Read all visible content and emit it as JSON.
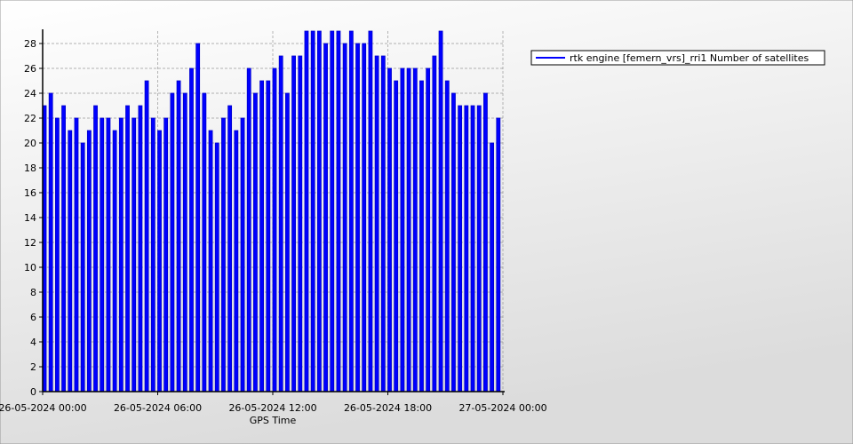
{
  "chart_data": {
    "type": "bar",
    "x_label": "GPS Time",
    "x": [
      "26-05-2024 00:00",
      "26-05-2024 00:20",
      "26-05-2024 00:40",
      "26-05-2024 01:00",
      "26-05-2024 01:20",
      "26-05-2024 01:40",
      "26-05-2024 02:00",
      "26-05-2024 02:20",
      "26-05-2024 02:40",
      "26-05-2024 03:00",
      "26-05-2024 03:20",
      "26-05-2024 03:40",
      "26-05-2024 04:00",
      "26-05-2024 04:20",
      "26-05-2024 04:40",
      "26-05-2024 05:00",
      "26-05-2024 05:20",
      "26-05-2024 05:40",
      "26-05-2024 06:00",
      "26-05-2024 06:20",
      "26-05-2024 06:40",
      "26-05-2024 07:00",
      "26-05-2024 07:20",
      "26-05-2024 07:40",
      "26-05-2024 08:00",
      "26-05-2024 08:20",
      "26-05-2024 08:40",
      "26-05-2024 09:00",
      "26-05-2024 09:20",
      "26-05-2024 09:40",
      "26-05-2024 10:00",
      "26-05-2024 10:20",
      "26-05-2024 10:40",
      "26-05-2024 11:00",
      "26-05-2024 11:20",
      "26-05-2024 11:40",
      "26-05-2024 12:00",
      "26-05-2024 12:20",
      "26-05-2024 12:40",
      "26-05-2024 13:00",
      "26-05-2024 13:20",
      "26-05-2024 13:40",
      "26-05-2024 14:00",
      "26-05-2024 14:20",
      "26-05-2024 14:40",
      "26-05-2024 15:00",
      "26-05-2024 15:20",
      "26-05-2024 15:40",
      "26-05-2024 16:00",
      "26-05-2024 16:20",
      "26-05-2024 16:40",
      "26-05-2024 17:00",
      "26-05-2024 17:20",
      "26-05-2024 17:40",
      "26-05-2024 18:00",
      "26-05-2024 18:20",
      "26-05-2024 18:40",
      "26-05-2024 19:00",
      "26-05-2024 19:20",
      "26-05-2024 19:40",
      "26-05-2024 20:00",
      "26-05-2024 20:20",
      "26-05-2024 20:40",
      "26-05-2024 21:00",
      "26-05-2024 21:20",
      "26-05-2024 21:40",
      "26-05-2024 22:00",
      "26-05-2024 22:20",
      "26-05-2024 22:40",
      "26-05-2024 23:00",
      "26-05-2024 23:20",
      "26-05-2024 23:40"
    ],
    "series": [
      {
        "name": "rtk engine [femern_vrs]_rri1 Number of satellites",
        "color": "#0000ff",
        "values": [
          23,
          24,
          22,
          23,
          21,
          22,
          20,
          21,
          23,
          22,
          22,
          21,
          22,
          23,
          22,
          23,
          25,
          22,
          21,
          22,
          24,
          25,
          24,
          26,
          28,
          24,
          21,
          20,
          22,
          23,
          21,
          22,
          26,
          24,
          25,
          25,
          26,
          27,
          24,
          27,
          27,
          29,
          29,
          29,
          28,
          29,
          29,
          28,
          29,
          28,
          28,
          29,
          27,
          27,
          26,
          25,
          26,
          26,
          26,
          25,
          26,
          27,
          29,
          25,
          24,
          23,
          23,
          23,
          23,
          24,
          20,
          22
        ]
      }
    ],
    "xlim": [
      "26-05-2024 00:00",
      "27-05-2024 00:00"
    ],
    "xticks": [
      "26-05-2024 00:00",
      "26-05-2024 06:00",
      "26-05-2024 12:00",
      "26-05-2024 18:00",
      "27-05-2024 00:00"
    ],
    "ylim": [
      0,
      29
    ],
    "yticks": [
      0,
      2,
      4,
      6,
      8,
      10,
      12,
      14,
      16,
      18,
      20,
      22,
      24,
      26,
      28
    ],
    "grid": true,
    "legend": "right"
  }
}
